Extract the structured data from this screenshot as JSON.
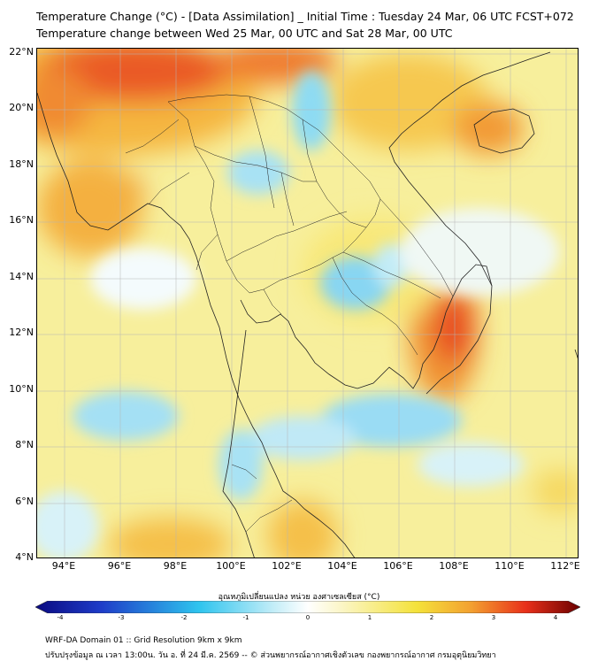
{
  "title_line1": "Temperature Change (°C) - [Data Assimilation] _ Initial Time : Tuesday 24 Mar, 06 UTC FCST+072",
  "title_line2": "Temperature change between Wed 25 Mar, 00 UTC and Sat 28 Mar, 00 UTC",
  "lat_labels": [
    "22°N",
    "20°N",
    "18°N",
    "16°N",
    "14°N",
    "12°N",
    "10°N",
    "8°N",
    "6°N",
    "4°N"
  ],
  "lon_labels": [
    "94°E",
    "96°E",
    "98°E",
    "100°E",
    "102°E",
    "104°E",
    "106°E",
    "108°E",
    "110°E",
    "112°E"
  ],
  "colorbar": {
    "label": "อุณหภูมิเปลี่ยนแปลง หน่วย องศาเซลเซียส (°C)",
    "ticks": [
      "-4",
      "-3",
      "-2",
      "-1",
      "0",
      "1",
      "2",
      "3",
      "4"
    ],
    "range": [
      -4,
      4
    ],
    "colors": {
      "min": "#0a0a80",
      "cold": "#2ec4ee",
      "neutral": "#ffffff",
      "warm": "#f4e23a",
      "hot": "#e8301a",
      "max": "#6a0000"
    }
  },
  "footer_line1": "WRF-DA Domain 01 :: Grid Resolution 9km x 9km",
  "footer_line2": "ปรับปรุงข้อมูล ณ เวลา 13:00น. วัน อ. ที่ 24 มี.ค. 2569 -- © ส่วนพยากรณ์อากาศเชิงตัวเลข กองพยากรณ์อากาศ กรมอุตุนิยมวิทยา",
  "map_extent": {
    "lon": [
      93,
      113
    ],
    "lat": [
      4,
      22.2
    ]
  }
}
